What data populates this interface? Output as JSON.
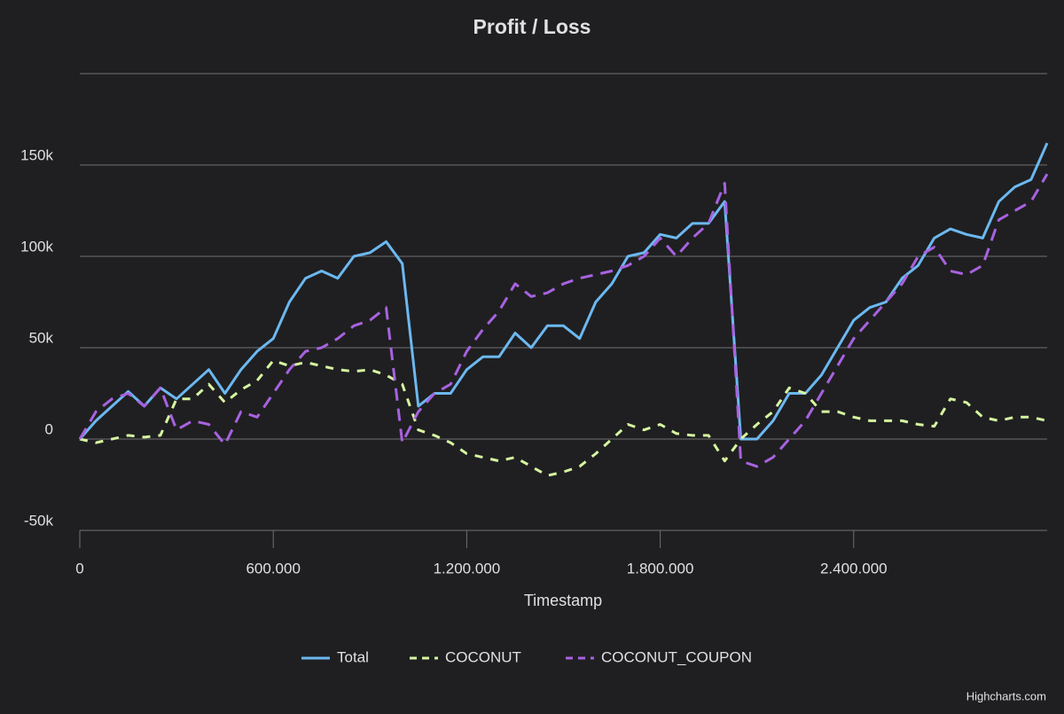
{
  "chart_data": {
    "type": "line",
    "title": "Profit / Loss",
    "x_label": "Timestamp",
    "credits": "Highcharts.com",
    "x": [
      0,
      50000,
      100000,
      150000,
      200000,
      250000,
      300000,
      350000,
      400000,
      450000,
      500000,
      550000,
      600000,
      650000,
      700000,
      750000,
      800000,
      850000,
      900000,
      950000,
      1000000,
      1050000,
      1100000,
      1150000,
      1200000,
      1250000,
      1300000,
      1350000,
      1400000,
      1450000,
      1500000,
      1550000,
      1600000,
      1650000,
      1700000,
      1750000,
      1800000,
      1850000,
      1900000,
      1950000,
      2000000,
      2050000,
      2100000,
      2150000,
      2200000,
      2250000,
      2300000,
      2350000,
      2400000,
      2450000,
      2500000,
      2550000,
      2600000,
      2650000,
      2700000,
      2750000,
      2800000,
      2850000,
      2900000,
      2950000,
      3000000
    ],
    "series": [
      {
        "name": "Total",
        "color": "#6cb8f0",
        "dash": "none",
        "values": [
          0,
          10000,
          18000,
          26000,
          18000,
          28000,
          22000,
          30000,
          38000,
          25000,
          38000,
          48000,
          55000,
          75000,
          88000,
          92000,
          88000,
          100000,
          102000,
          108000,
          96000,
          18000,
          25000,
          25000,
          38000,
          45000,
          45000,
          58000,
          50000,
          62000,
          62000,
          55000,
          75000,
          85000,
          100000,
          102000,
          112000,
          110000,
          118000,
          118000,
          130000,
          0,
          0,
          10000,
          25000,
          25000,
          35000,
          50000,
          65000,
          72000,
          75000,
          88000,
          95000,
          110000,
          115000,
          112000,
          110000,
          130000,
          138000,
          142000,
          162000
        ]
      },
      {
        "name": "COCONUT",
        "color": "#d6f5a0",
        "dash": "9,9",
        "values": [
          0,
          -2000,
          0,
          2000,
          1000,
          2000,
          22000,
          22000,
          30000,
          20000,
          27000,
          32000,
          43000,
          40000,
          42000,
          40000,
          38000,
          37000,
          38000,
          35000,
          30000,
          5000,
          2000,
          -2000,
          -8000,
          -10000,
          -12000,
          -10000,
          -15000,
          -20000,
          -18000,
          -15000,
          -8000,
          0,
          8000,
          5000,
          8000,
          3000,
          2000,
          2000,
          -12000,
          0,
          8000,
          15000,
          28000,
          25000,
          15000,
          15000,
          12000,
          10000,
          10000,
          10000,
          8000,
          7000,
          22000,
          20000,
          12000,
          10000,
          12000,
          12000,
          10000
        ]
      },
      {
        "name": "COCONUT_COUPON",
        "color": "#a862e0",
        "dash": "14,9",
        "values": [
          0,
          15000,
          22000,
          25000,
          18000,
          28000,
          5000,
          10000,
          8000,
          -3000,
          15000,
          12000,
          25000,
          38000,
          48000,
          50000,
          55000,
          62000,
          65000,
          72000,
          -2000,
          15000,
          25000,
          30000,
          48000,
          60000,
          70000,
          85000,
          78000,
          80000,
          85000,
          88000,
          90000,
          92000,
          95000,
          100000,
          110000,
          100000,
          110000,
          118000,
          140000,
          -12000,
          -15000,
          -10000,
          0,
          10000,
          25000,
          40000,
          55000,
          65000,
          75000,
          85000,
          100000,
          105000,
          92000,
          90000,
          95000,
          120000,
          125000,
          130000,
          145000
        ]
      }
    ],
    "xlim": [
      0,
      3000000
    ],
    "xticks": [
      0,
      {
        "value": 600000,
        "label": "600.000"
      },
      {
        "value": 1200000,
        "label": "1.200.000"
      },
      {
        "value": 1800000,
        "label": "1.800.000"
      },
      {
        "value": 2400000,
        "label": "2.400.000"
      }
    ],
    "ylim": [
      -50000,
      200000
    ],
    "yticks": [
      {
        "value": -50000,
        "label": "-50k"
      },
      0,
      {
        "value": 50000,
        "label": "50k"
      },
      {
        "value": 100000,
        "label": "100k"
      },
      {
        "value": 150000,
        "label": "150k"
      }
    ],
    "grid": true,
    "legend": "bottom"
  }
}
